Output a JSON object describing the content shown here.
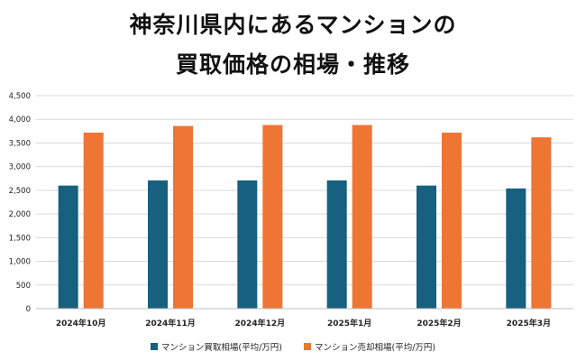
{
  "title_lines": [
    "神奈川県内にあるマンションの",
    "買取価格の相場・推移"
  ],
  "chart_data": {
    "type": "bar",
    "title": "神奈川県内にあるマンションの買取価格の相場・推移",
    "categories": [
      "2024年10月",
      "2024年11月",
      "2024年12月",
      "2025年1月",
      "2025年2月",
      "2025年3月"
    ],
    "series": [
      {
        "name": "マンション買取相場(平均/万円)",
        "color": "#17607f",
        "values": [
          2600,
          2710,
          2710,
          2710,
          2600,
          2540
        ]
      },
      {
        "name": "マンション売却相場(平均/万円)",
        "color": "#ee7533",
        "values": [
          3720,
          3860,
          3880,
          3880,
          3720,
          3620
        ]
      }
    ],
    "yticks": [
      "0",
      "500",
      "1,000",
      "1,500",
      "2,000",
      "2,500",
      "3,000",
      "3,500",
      "4,000",
      "4,500"
    ],
    "ylim": [
      0,
      4500
    ],
    "xlabel": "",
    "ylabel": "",
    "grid": true,
    "legend_position": "bottom"
  }
}
